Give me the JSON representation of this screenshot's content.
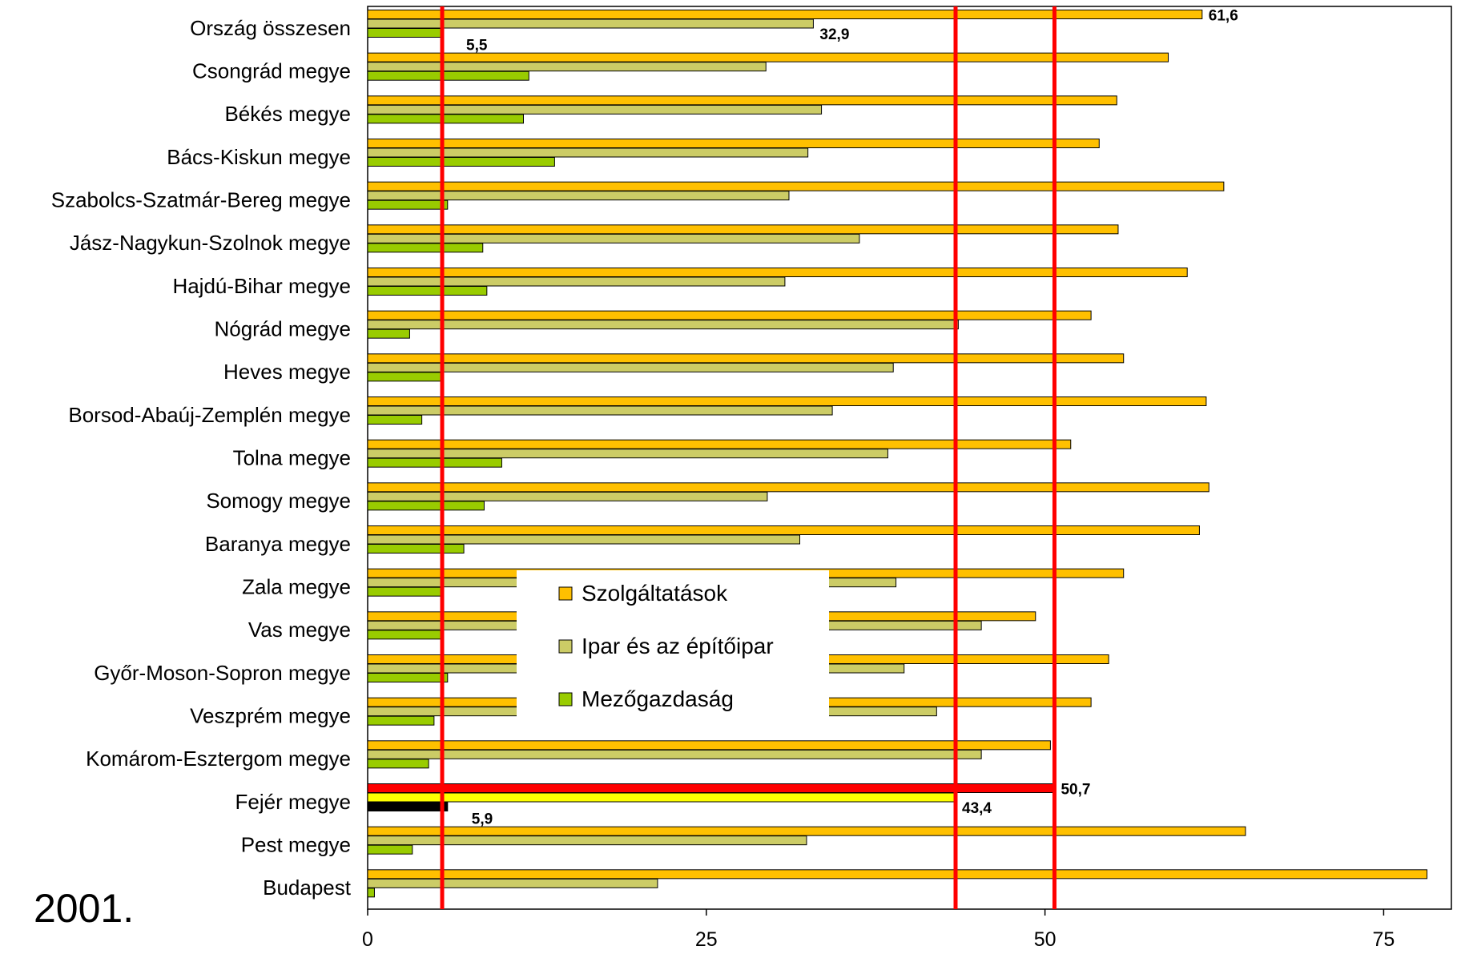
{
  "year_label": "2001.",
  "chart_data": {
    "type": "bar",
    "orientation": "horizontal",
    "categories": [
      "Ország összesen",
      "Csongrád megye",
      "Békés megye",
      "Bács-Kiskun megye",
      "Szabolcs-Szatmár-Bereg megye",
      "Jász-Nagykun-Szolnok megye",
      "Hajdú-Bihar megye",
      "Nógrád megye",
      "Heves megye",
      "Borsod-Abaúj-Zemplén megye",
      "Tolna megye",
      "Somogy megye",
      "Baranya megye",
      "Zala megye",
      "Vas megye",
      "Győr-Moson-Sopron megye",
      "Veszprém megye",
      "Komárom-Esztergom megye",
      "Fejér megye",
      "Pest megye",
      "Budapest"
    ],
    "series": [
      {
        "name": "Szolgáltatások",
        "color": "#FFC000",
        "values": [
          61.6,
          59.1,
          55.3,
          54.0,
          63.2,
          55.4,
          60.5,
          53.4,
          55.8,
          61.9,
          51.9,
          62.1,
          61.4,
          55.8,
          49.3,
          54.7,
          53.4,
          50.4,
          50.7,
          64.8,
          78.2
        ]
      },
      {
        "name": "Ipar és az építőipar",
        "color": "#CCCC66",
        "values": [
          32.9,
          29.4,
          33.5,
          32.5,
          31.1,
          36.3,
          30.8,
          43.6,
          38.8,
          34.3,
          38.4,
          29.5,
          31.9,
          39.0,
          45.3,
          39.6,
          42.0,
          45.3,
          43.4,
          32.4,
          21.4
        ]
      },
      {
        "name": "Mezőgazdaság",
        "color": "#99CC00",
        "values": [
          5.5,
          11.9,
          11.5,
          13.8,
          5.9,
          8.5,
          8.8,
          3.1,
          5.5,
          4.0,
          9.9,
          8.6,
          7.1,
          5.5,
          5.5,
          5.9,
          4.9,
          4.5,
          5.9,
          3.3,
          0.5
        ]
      }
    ],
    "highlight": {
      "category": "Fejér megye",
      "colors": [
        "#FF0000",
        "#FFFF00",
        "#000000"
      ]
    },
    "data_labels": [
      {
        "category": "Ország összesen",
        "series": 0,
        "text": "61,6"
      },
      {
        "category": "Ország összesen",
        "series": 1,
        "text": "32,9"
      },
      {
        "category": "Ország összesen",
        "series": 2,
        "text": "5,5"
      },
      {
        "category": "Fejér megye",
        "series": 0,
        "text": "50,7"
      },
      {
        "category": "Fejér megye",
        "series": 1,
        "text": "43,4"
      },
      {
        "category": "Fejér megye",
        "series": 2,
        "text": "5,9"
      }
    ],
    "reference_lines": [
      5.5,
      43.4,
      50.7
    ],
    "reference_line_color": "#FF0000",
    "xlim": [
      0,
      80
    ],
    "xticks": [
      0,
      25,
      50,
      75
    ],
    "legend_position": "center",
    "title": "",
    "xlabel": "",
    "ylabel": ""
  }
}
